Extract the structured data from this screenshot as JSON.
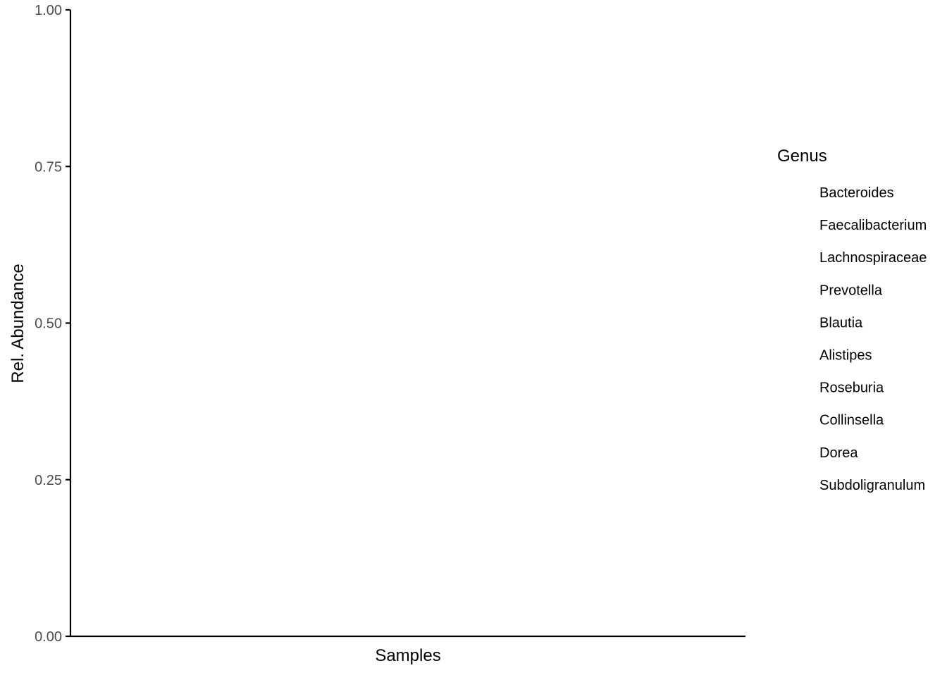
{
  "chart_data": {
    "type": "bar",
    "stacked": true,
    "categories": [],
    "series": [
      {
        "name": "Bacteroides",
        "values": []
      },
      {
        "name": "Faecalibacterium",
        "values": []
      },
      {
        "name": "Lachnospiraceae",
        "values": []
      },
      {
        "name": "Prevotella",
        "values": []
      },
      {
        "name": "Blautia",
        "values": []
      },
      {
        "name": "Alistipes",
        "values": []
      },
      {
        "name": "Roseburia",
        "values": []
      },
      {
        "name": "Collinsella",
        "values": []
      },
      {
        "name": "Dorea",
        "values": []
      },
      {
        "name": "Subdoligranulum",
        "values": []
      }
    ],
    "xlabel": "Samples",
    "ylabel": "Rel. Abundance",
    "ylim": [
      0,
      1
    ],
    "yticks": [
      "0.00",
      "0.25",
      "0.50",
      "0.75",
      "1.00"
    ],
    "grid": false,
    "legend": {
      "title": "Genus",
      "placement": "right"
    }
  }
}
